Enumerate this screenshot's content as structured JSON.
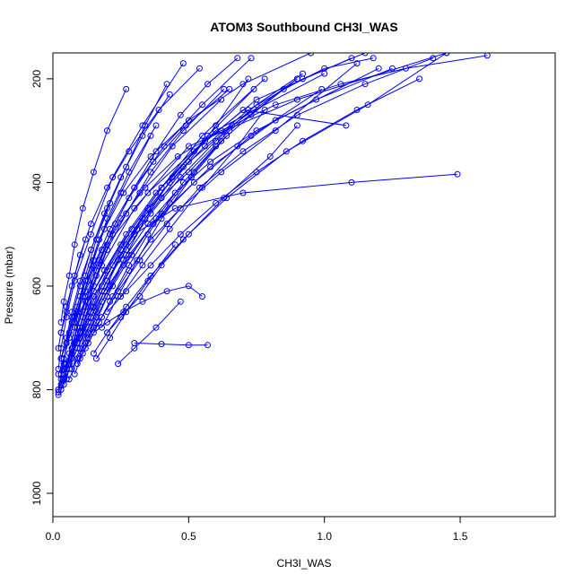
{
  "chart_data": {
    "type": "line",
    "title": "ATOM3 Southbound CH3I_WAS",
    "xlabel": "CH3I_WAS",
    "ylabel": "Pressure (mbar)",
    "xlim": [
      0,
      1.85
    ],
    "ylim": [
      1045,
      150
    ],
    "y_reversed": true,
    "x_ticks": [
      0.0,
      0.5,
      1.0,
      1.5
    ],
    "x_tick_labels": [
      "0.0",
      "0.5",
      "1.0",
      "1.5"
    ],
    "y_ticks": [
      200,
      400,
      600,
      800,
      1000
    ],
    "y_tick_labels": [
      "200",
      "400",
      "600",
      "800",
      "1000"
    ],
    "grid": false,
    "legend": "none",
    "series_color": "#0000FF",
    "marker": "open-circle",
    "series": [
      {
        "x": [
          0.03,
          0.05,
          0.08,
          0.12,
          0.2,
          0.35,
          0.6,
          1.0
        ],
        "y": [
          800,
          760,
          700,
          620,
          520,
          420,
          300,
          190
        ]
      },
      {
        "x": [
          0.02,
          0.04,
          0.07,
          0.1,
          0.18,
          0.3,
          0.5,
          0.9,
          1.45
        ],
        "y": [
          805,
          770,
          720,
          650,
          560,
          450,
          330,
          240,
          150
        ]
      },
      {
        "x": [
          0.05,
          0.07,
          0.1,
          0.15,
          0.25,
          0.4,
          0.55,
          0.78
        ],
        "y": [
          780,
          740,
          690,
          610,
          520,
          410,
          310,
          200
        ]
      },
      {
        "x": [
          0.02,
          0.03,
          0.05,
          0.08,
          0.14,
          0.22,
          0.33,
          0.48
        ],
        "y": [
          760,
          720,
          660,
          590,
          500,
          390,
          290,
          170
        ]
      },
      {
        "x": [
          0.08,
          0.1,
          0.12,
          0.16,
          0.22,
          0.32,
          0.44,
          0.62
        ],
        "y": [
          710,
          680,
          640,
          580,
          500,
          420,
          330,
          240
        ]
      },
      {
        "x": [
          0.03,
          0.06,
          0.09,
          0.14,
          0.2,
          0.29,
          0.4,
          0.56,
          0.75,
          1.1
        ],
        "y": [
          790,
          750,
          700,
          640,
          570,
          490,
          410,
          320,
          240,
          160
        ]
      },
      {
        "x": [
          0.04,
          0.06,
          0.08,
          0.11,
          0.15,
          0.2,
          0.28,
          0.38
        ],
        "y": [
          770,
          730,
          680,
          620,
          550,
          470,
          380,
          290
        ]
      },
      {
        "x": [
          0.05,
          0.1,
          0.15,
          0.22,
          0.3,
          0.45,
          0.7,
          1.1,
          1.49
        ],
        "y": [
          750,
          690,
          620,
          560,
          500,
          450,
          420,
          400,
          384
        ]
      },
      {
        "x": [
          0.1,
          0.14,
          0.2,
          0.27,
          0.35,
          0.5,
          0.65,
          0.9
        ],
        "y": [
          700,
          650,
          590,
          520,
          450,
          380,
          300,
          200
        ]
      },
      {
        "x": [
          0.02,
          0.03,
          0.04,
          0.06,
          0.09,
          0.12,
          0.17,
          0.25,
          0.36
        ],
        "y": [
          800,
          770,
          740,
          700,
          650,
          590,
          510,
          420,
          310
        ]
      },
      {
        "x": [
          0.06,
          0.09,
          0.13,
          0.18,
          0.26,
          0.37,
          0.52,
          0.73,
          0.99
        ],
        "y": [
          780,
          740,
          690,
          630,
          560,
          480,
          400,
          310,
          220
        ]
      },
      {
        "x": [
          0.2,
          0.25,
          0.32,
          0.4,
          0.5,
          0.63,
          0.8,
          0.9
        ],
        "y": [
          690,
          660,
          620,
          560,
          500,
          430,
          350,
          290
        ]
      },
      {
        "x": [
          0.3,
          0.4,
          0.5,
          0.57
        ],
        "y": [
          710,
          712,
          714,
          714
        ]
      },
      {
        "x": [
          0.15,
          0.2,
          0.26,
          0.33,
          0.42,
          0.5,
          0.55
        ],
        "y": [
          690,
          670,
          650,
          630,
          610,
          600,
          620
        ]
      },
      {
        "x": [
          0.03,
          0.05,
          0.08,
          0.11,
          0.15,
          0.21,
          0.3,
          0.41,
          0.55,
          0.73
        ],
        "y": [
          740,
          710,
          670,
          620,
          560,
          490,
          410,
          330,
          250,
          160
        ]
      },
      {
        "x": [
          0.04,
          0.07,
          0.1,
          0.13,
          0.19,
          0.27,
          0.38,
          0.52,
          0.7,
          1.08
        ],
        "y": [
          760,
          720,
          680,
          630,
          570,
          500,
          420,
          340,
          260,
          290
        ]
      },
      {
        "x": [
          0.07,
          0.1,
          0.14,
          0.18,
          0.24,
          0.31,
          0.4,
          0.5,
          0.6,
          0.72
        ],
        "y": [
          730,
          700,
          660,
          610,
          550,
          490,
          430,
          360,
          290,
          200
        ]
      },
      {
        "x": [
          0.12,
          0.16,
          0.21,
          0.28,
          0.36,
          0.47,
          0.62,
          0.82,
          1.12
        ],
        "y": [
          720,
          680,
          630,
          570,
          510,
          450,
          380,
          300,
          170
        ]
      },
      {
        "x": [
          0.02,
          0.04,
          0.06,
          0.09,
          0.13,
          0.19,
          0.28,
          0.4,
          0.58,
          0.82,
          1.2
        ],
        "y": [
          810,
          790,
          760,
          720,
          670,
          610,
          540,
          460,
          370,
          280,
          180
        ]
      },
      {
        "x": [
          0.09,
          0.12,
          0.16,
          0.22,
          0.29,
          0.38,
          0.48,
          0.6
        ],
        "y": [
          750,
          710,
          660,
          600,
          540,
          470,
          400,
          330
        ]
      },
      {
        "x": [
          0.05,
          0.08,
          0.12,
          0.17,
          0.23,
          0.3,
          0.38,
          0.47,
          0.57,
          0.68
        ],
        "y": [
          700,
          660,
          610,
          550,
          480,
          410,
          340,
          270,
          210,
          160
        ]
      },
      {
        "x": [
          0.03,
          0.05,
          0.07,
          0.1,
          0.14,
          0.19,
          0.25,
          0.33,
          0.43
        ],
        "y": [
          740,
          700,
          650,
          590,
          530,
          460,
          390,
          310,
          230
        ]
      },
      {
        "x": [
          0.15,
          0.2,
          0.27,
          0.36,
          0.48,
          0.64,
          0.86,
          1.16,
          1.45
        ],
        "y": [
          730,
          690,
          640,
          580,
          510,
          430,
          340,
          250,
          150
        ]
      },
      {
        "x": [
          0.06,
          0.09,
          0.12,
          0.16,
          0.21,
          0.27,
          0.34,
          0.42
        ],
        "y": [
          690,
          640,
          580,
          510,
          440,
          370,
          290,
          210
        ]
      },
      {
        "x": [
          0.02,
          0.03,
          0.05,
          0.07,
          0.1,
          0.14,
          0.2,
          0.28,
          0.39,
          0.54
        ],
        "y": [
          720,
          690,
          650,
          600,
          540,
          480,
          410,
          340,
          260,
          180
        ]
      },
      {
        "x": [
          0.25,
          0.33,
          0.43,
          0.55,
          0.68,
          0.78
        ],
        "y": [
          620,
          560,
          490,
          410,
          330,
          260
        ]
      },
      {
        "x": [
          0.08,
          0.11,
          0.15,
          0.2,
          0.26,
          0.34,
          0.44,
          0.57,
          0.74
        ],
        "y": [
          770,
          730,
          680,
          620,
          550,
          470,
          390,
          310,
          220
        ]
      },
      {
        "x": [
          0.04,
          0.06,
          0.09,
          0.13,
          0.18,
          0.25,
          0.35,
          0.48,
          0.66,
          0.9
        ],
        "y": [
          780,
          750,
          710,
          660,
          600,
          530,
          450,
          370,
          290,
          200
        ]
      },
      {
        "x": [
          0.1,
          0.13,
          0.17,
          0.22,
          0.28,
          0.35,
          0.43,
          0.52,
          0.62,
          0.73,
          0.85,
          1.0,
          1.18
        ],
        "y": [
          740,
          710,
          670,
          620,
          560,
          500,
          440,
          380,
          320,
          270,
          220,
          180,
          160
        ]
      },
      {
        "x": [
          0.05,
          0.07,
          0.1,
          0.14,
          0.19,
          0.26,
          0.36,
          0.5,
          0.7,
          0.95
        ],
        "y": [
          710,
          670,
          620,
          560,
          490,
          420,
          350,
          280,
          210,
          150
        ]
      },
      {
        "x": [
          0.18,
          0.24,
          0.31,
          0.4,
          0.51,
          0.64
        ],
        "y": [
          680,
          620,
          550,
          470,
          390,
          310
        ]
      },
      {
        "x": [
          0.02,
          0.03,
          0.04,
          0.05,
          0.07,
          0.1,
          0.14,
          0.2
        ],
        "y": [
          800,
          780,
          750,
          710,
          660,
          600,
          530,
          450
        ]
      },
      {
        "x": [
          0.07,
          0.1,
          0.14,
          0.19,
          0.25,
          0.33,
          0.43,
          0.56,
          0.72,
          0.92,
          1.15
        ],
        "y": [
          760,
          720,
          670,
          610,
          540,
          470,
          400,
          330,
          260,
          200,
          150
        ]
      },
      {
        "x": [
          0.13,
          0.18,
          0.24,
          0.32,
          0.42,
          0.54,
          0.7,
          0.9,
          1.15,
          1.4
        ],
        "y": [
          700,
          660,
          610,
          550,
          480,
          410,
          340,
          270,
          210,
          160
        ]
      },
      {
        "x": [
          0.03,
          0.04,
          0.06,
          0.08,
          0.11,
          0.15,
          0.2,
          0.27
        ],
        "y": [
          670,
          630,
          580,
          520,
          450,
          380,
          300,
          220
        ]
      },
      {
        "x": [
          0.06,
          0.08,
          0.11,
          0.15,
          0.2,
          0.27,
          0.36,
          0.48,
          0.63
        ],
        "y": [
          750,
          710,
          660,
          600,
          530,
          460,
          380,
          300,
          220
        ]
      },
      {
        "x": [
          0.2,
          0.27,
          0.36,
          0.47,
          0.6,
          0.75,
          0.92,
          1.12,
          1.35
        ],
        "y": [
          650,
          610,
          560,
          500,
          440,
          380,
          320,
          260,
          200
        ]
      },
      {
        "x": [
          0.04,
          0.05,
          0.07,
          0.09,
          0.12,
          0.16,
          0.21,
          0.28,
          0.37,
          0.49,
          0.65
        ],
        "y": [
          790,
          760,
          720,
          680,
          630,
          570,
          500,
          430,
          360,
          290,
          220
        ]
      },
      {
        "x": [
          0.09,
          0.12,
          0.16,
          0.21,
          0.27,
          0.35,
          0.45,
          0.58,
          0.75,
          0.97,
          1.25
        ],
        "y": [
          720,
          690,
          650,
          600,
          540,
          480,
          420,
          360,
          300,
          240,
          180
        ]
      },
      {
        "x": [
          0.11,
          0.15,
          0.2,
          0.27,
          0.36,
          0.47,
          0.6,
          0.75,
          0.92
        ],
        "y": [
          680,
          640,
          590,
          530,
          460,
          390,
          320,
          250,
          190
        ]
      },
      {
        "x": [
          0.02,
          0.04,
          0.06,
          0.09,
          0.13,
          0.18,
          0.25,
          0.34,
          0.46,
          0.62,
          0.82,
          1.06,
          1.3,
          1.6
        ],
        "y": [
          770,
          740,
          700,
          650,
          590,
          530,
          470,
          410,
          350,
          300,
          250,
          210,
          180,
          155
        ]
      },
      {
        "x": [
          0.03,
          0.05,
          0.08,
          0.12
        ],
        "y": [
          690,
          640,
          580,
          510
        ]
      },
      {
        "x": [
          0.16,
          0.21,
          0.27,
          0.35,
          0.45
        ],
        "y": [
          740,
          700,
          650,
          590,
          520
        ]
      },
      {
        "x": [
          0.24,
          0.3,
          0.38,
          0.47
        ],
        "y": [
          750,
          720,
          680,
          630
        ]
      }
    ]
  }
}
